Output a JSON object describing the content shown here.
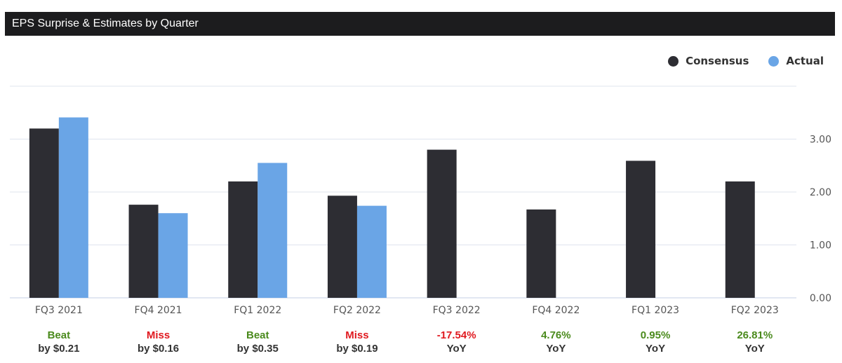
{
  "header": {
    "title": "EPS Surprise & Estimates by Quarter"
  },
  "legend": {
    "items": [
      {
        "label": "Consensus",
        "color": "#2d2d33"
      },
      {
        "label": "Actual",
        "color": "#6aa5e6"
      }
    ]
  },
  "colors": {
    "beat": "#4a8a1c",
    "miss": "#e0191f",
    "gridline": "#dfe4ee",
    "axis": "#c6cfe6"
  },
  "chart_data": {
    "type": "bar",
    "categories": [
      "FQ3 2021",
      "FQ4 2021",
      "FQ1 2022",
      "FQ2 2022",
      "FQ3 2022",
      "FQ4 2022",
      "FQ1 2023",
      "FQ2 2023"
    ],
    "series": [
      {
        "name": "Consensus",
        "color": "#2d2d33",
        "values": [
          3.2,
          1.76,
          2.2,
          1.93,
          2.8,
          1.67,
          2.59,
          2.2
        ]
      },
      {
        "name": "Actual",
        "color": "#6aa5e6",
        "values": [
          3.41,
          1.6,
          2.55,
          1.74,
          null,
          null,
          null,
          null
        ]
      }
    ],
    "yaxis": {
      "position": "right",
      "ticks": [
        "0.00",
        "1.00",
        "2.00",
        "3.00"
      ],
      "ylim": [
        0,
        4
      ]
    },
    "grid": true,
    "legend_position": "top-right",
    "results": [
      {
        "line1": "Beat",
        "line2": "by $0.21",
        "status": "beat"
      },
      {
        "line1": "Miss",
        "line2": "by $0.16",
        "status": "miss"
      },
      {
        "line1": "Beat",
        "line2": "by $0.35",
        "status": "beat"
      },
      {
        "line1": "Miss",
        "line2": "by $0.19",
        "status": "miss"
      },
      {
        "line1": "-17.54%",
        "line2": "YoY",
        "status": "miss"
      },
      {
        "line1": "4.76%",
        "line2": "YoY",
        "status": "beat"
      },
      {
        "line1": "0.95%",
        "line2": "YoY",
        "status": "beat"
      },
      {
        "line1": "26.81%",
        "line2": "YoY",
        "status": "beat"
      }
    ]
  }
}
